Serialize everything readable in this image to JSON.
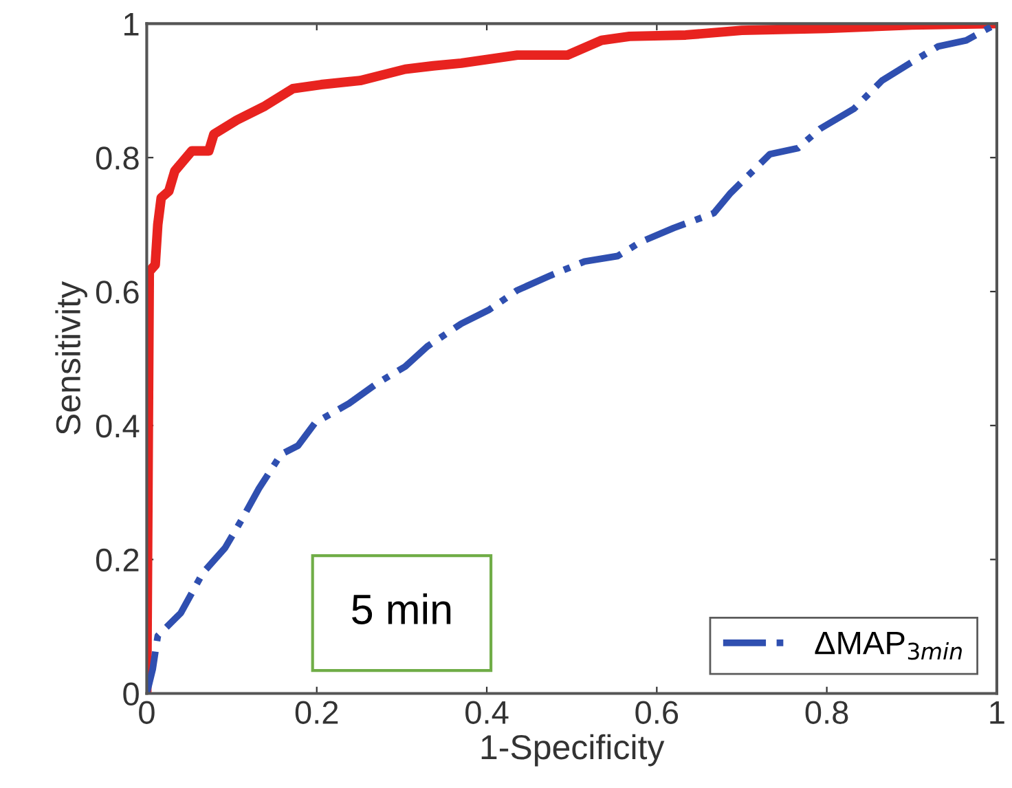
{
  "chart_data": {
    "type": "line",
    "xlabel": "1-Specificity",
    "ylabel": "Sensitivity",
    "annotations": [
      "5 min"
    ],
    "xlim": [
      0,
      1
    ],
    "ylim": [
      0,
      1
    ],
    "xticks": [
      0,
      0.2,
      0.4,
      0.6,
      0.8,
      1
    ],
    "yticks": [
      0,
      0.2,
      0.4,
      0.6,
      0.8,
      1
    ],
    "grid": false,
    "legend": "bottom right",
    "series": [
      {
        "color": "#e8231f",
        "line_style": "solid",
        "x": [
          0,
          0.003,
          0.01,
          0.013,
          0.017,
          0.026,
          0.033,
          0.053,
          0.073,
          0.079,
          0.106,
          0.139,
          0.172,
          0.205,
          0.251,
          0.304,
          0.337,
          0.37,
          0.436,
          0.495,
          0.535,
          0.568,
          0.634,
          0.7,
          0.8,
          0.9,
          1
        ],
        "values": [
          0,
          0.63,
          0.64,
          0.7,
          0.74,
          0.75,
          0.78,
          0.81,
          0.81,
          0.835,
          0.856,
          0.877,
          0.903,
          0.909,
          0.915,
          0.932,
          0.937,
          0.941,
          0.953,
          0.953,
          0.975,
          0.981,
          0.983,
          0.99,
          0.993,
          0.998,
          1
        ]
      },
      {
        "name": "ΔMAP$_{3min}$",
        "color": "#2f4fb0",
        "line_style": "dashdot",
        "x": [
          0,
          0.007,
          0.013,
          0.04,
          0.066,
          0.092,
          0.112,
          0.132,
          0.158,
          0.178,
          0.198,
          0.238,
          0.271,
          0.304,
          0.33,
          0.37,
          0.403,
          0.436,
          0.475,
          0.515,
          0.554,
          0.581,
          0.62,
          0.667,
          0.686,
          0.713,
          0.733,
          0.766,
          0.792,
          0.832,
          0.865,
          0.898,
          0.931,
          0.964,
          1
        ],
        "values": [
          0,
          0.036,
          0.086,
          0.12,
          0.18,
          0.217,
          0.26,
          0.306,
          0.357,
          0.37,
          0.404,
          0.433,
          0.463,
          0.488,
          0.518,
          0.552,
          0.573,
          0.602,
          0.624,
          0.645,
          0.653,
          0.674,
          0.695,
          0.717,
          0.746,
          0.78,
          0.805,
          0.814,
          0.843,
          0.873,
          0.915,
          0.941,
          0.966,
          0.975,
          1
        ]
      }
    ]
  }
}
